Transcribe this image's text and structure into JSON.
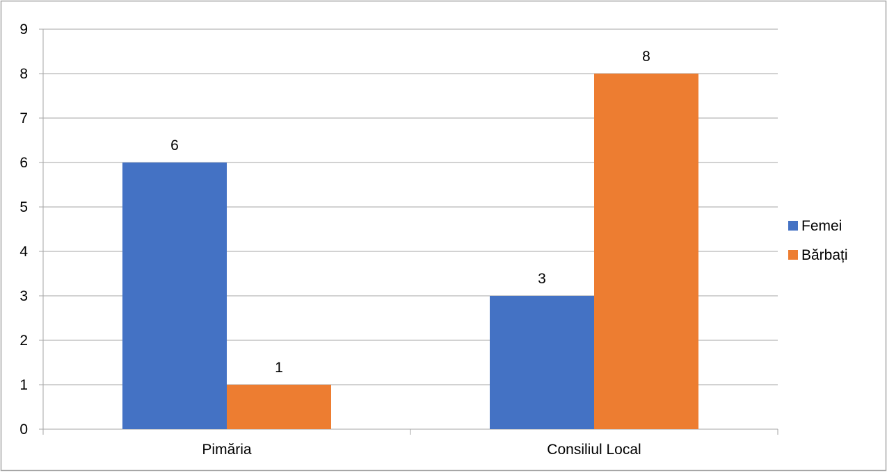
{
  "chart_data": {
    "type": "bar",
    "title": "",
    "xlabel": "",
    "ylabel": "",
    "categories": [
      "Pimăria",
      "Consiliul Local"
    ],
    "series": [
      {
        "name": "Femei",
        "values": [
          6,
          3
        ],
        "color": "#4472C4"
      },
      {
        "name": "Bărbați",
        "values": [
          1,
          8
        ],
        "color": "#ED7D31"
      }
    ],
    "ylim": [
      0,
      9
    ],
    "yticks": [
      0,
      1,
      2,
      3,
      4,
      5,
      6,
      7,
      8,
      9
    ],
    "grid": true,
    "data_labels": true,
    "legend_position": "right",
    "gridline_color": "#A6A6A6",
    "border_color": "#A6A6A6"
  }
}
